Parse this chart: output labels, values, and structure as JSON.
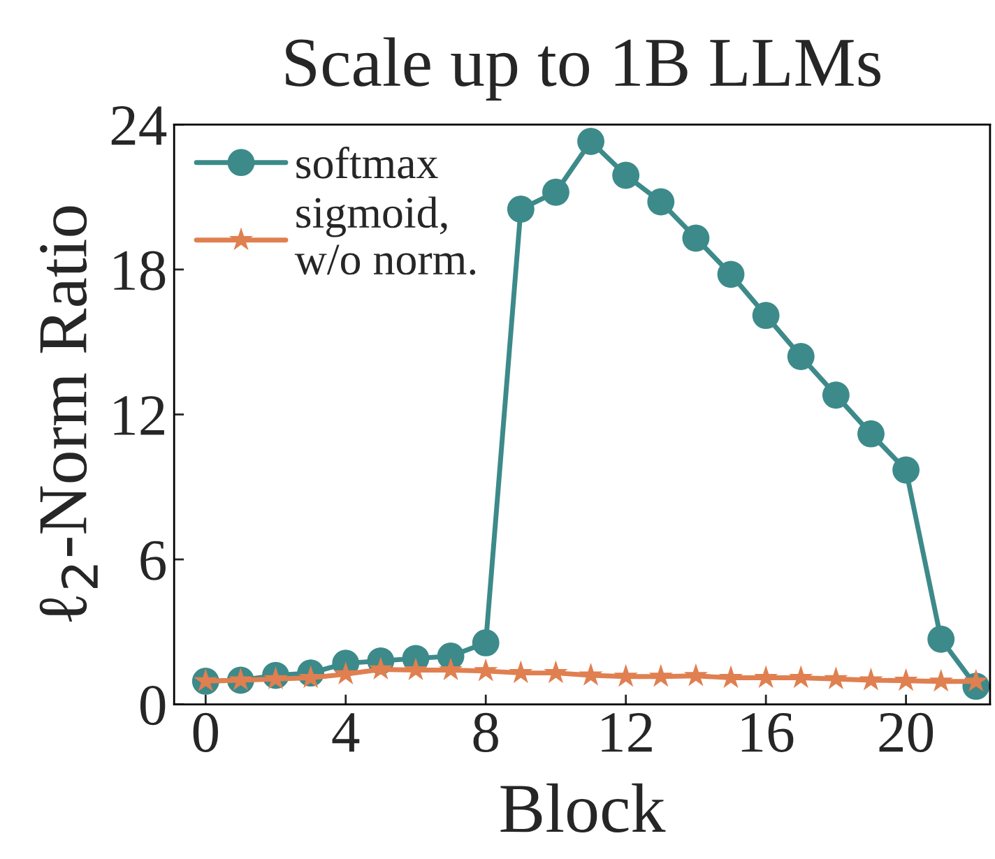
{
  "chart_data": {
    "type": "line",
    "title": "Scale up to 1B LLMs",
    "xlabel": "Block",
    "ylabel": "ℓ$_{2}$-Norm Ratio",
    "x": [
      0,
      1,
      2,
      3,
      4,
      5,
      6,
      7,
      8,
      9,
      10,
      11,
      12,
      13,
      14,
      15,
      16,
      17,
      18,
      19,
      20,
      21,
      22
    ],
    "series": [
      {
        "name": "softmax",
        "color": "#3d8a8a",
        "marker": "circle",
        "values": [
          0.96,
          1.0,
          1.2,
          1.3,
          1.7,
          1.8,
          1.9,
          2.0,
          2.55,
          20.5,
          21.2,
          23.3,
          21.9,
          20.8,
          19.3,
          17.8,
          16.1,
          14.4,
          12.8,
          11.2,
          9.7,
          2.7,
          0.75
        ]
      },
      {
        "name": "sigmoid,\nw/o norm.",
        "color": "#e07f50",
        "marker": "star",
        "values": [
          0.96,
          1.0,
          1.05,
          1.1,
          1.25,
          1.45,
          1.42,
          1.42,
          1.38,
          1.3,
          1.3,
          1.2,
          1.15,
          1.15,
          1.18,
          1.1,
          1.1,
          1.1,
          1.05,
          1.0,
          0.98,
          0.95,
          0.95
        ]
      }
    ],
    "xlim": [
      -0.9,
      22.4
    ],
    "ylim": [
      0,
      24
    ],
    "xticks": [
      0,
      4,
      8,
      12,
      16,
      20
    ],
    "yticks": [
      0,
      6,
      12,
      18,
      24
    ],
    "legend": "top left",
    "grid": false
  }
}
